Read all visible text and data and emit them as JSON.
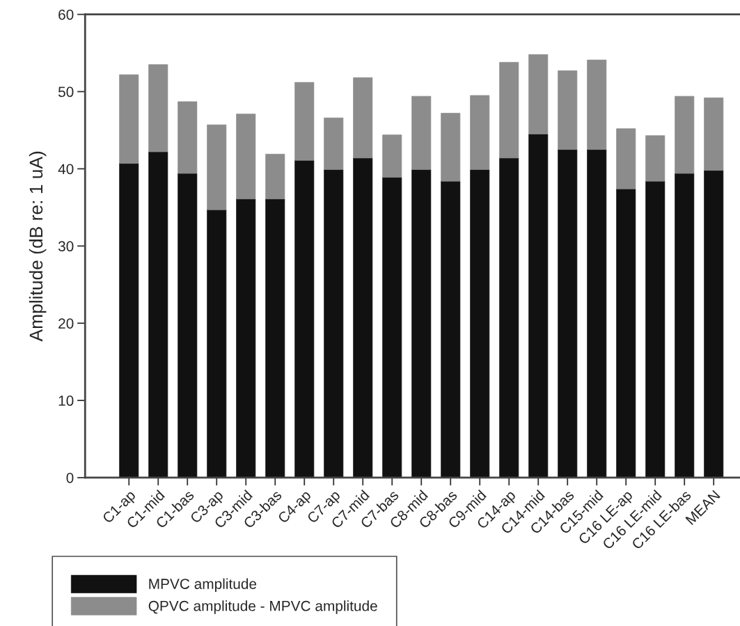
{
  "chart_data": {
    "type": "bar",
    "stacked": true,
    "ylabel": "Amplitude (dB re: 1 uA)",
    "categories": [
      "C1-ap",
      "C1-mid",
      "C1-bas",
      "C3-ap",
      "C3-mid",
      "C3-bas",
      "C4-ap",
      "C7-ap",
      "C7-mid",
      "C7-bas",
      "C8-mid",
      "C8-bas",
      "C9-mid",
      "C14-ap",
      "C14-mid",
      "C14-bas",
      "C15-mid",
      "C16 LE-ap",
      "C16 LE-mid",
      "C16 LE-bas",
      "MEAN"
    ],
    "series": [
      {
        "name": "MPVC amplitude",
        "color": "#111111",
        "values": [
          40.7,
          42.2,
          39.4,
          34.7,
          36.1,
          36.1,
          41.1,
          39.9,
          41.4,
          38.9,
          39.9,
          38.4,
          39.9,
          41.4,
          44.5,
          42.5,
          42.5,
          37.4,
          38.4,
          39.4,
          39.8
        ]
      },
      {
        "name": "QPVC amplitude - MPVC amplitude",
        "color": "#8c8c8c",
        "values": [
          11.5,
          11.3,
          9.3,
          11.0,
          11.0,
          5.8,
          10.1,
          6.7,
          10.4,
          5.5,
          9.5,
          8.8,
          9.6,
          12.4,
          10.3,
          10.2,
          11.6,
          7.8,
          5.9,
          10.0,
          9.4
        ]
      }
    ],
    "ylim": [
      0,
      60
    ],
    "yticks": [
      0,
      10,
      20,
      30,
      40,
      50,
      60
    ],
    "grid": false,
    "legend": "bottom left"
  }
}
